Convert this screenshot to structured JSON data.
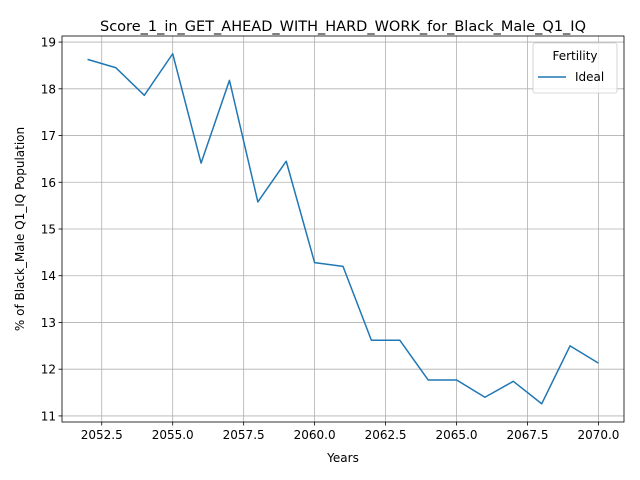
{
  "chart_data": {
    "type": "line",
    "title": "Score_1_in_GET_AHEAD_WITH_HARD_WORK_for_Black_Male_Q1_IQ",
    "xlabel": "Years",
    "ylabel": "% of Black_Male Q1_IQ Population",
    "xlim": [
      2051.1,
      2070.9
    ],
    "ylim": [
      10.87,
      19.13
    ],
    "x_ticks": [
      2052.5,
      2055.0,
      2057.5,
      2060.0,
      2062.5,
      2065.0,
      2067.5,
      2070.0
    ],
    "x_tick_labels": [
      "2052.5",
      "2055.0",
      "2057.5",
      "2060.0",
      "2062.5",
      "2065.0",
      "2067.5",
      "2070.0"
    ],
    "y_ticks": [
      11,
      12,
      13,
      14,
      15,
      16,
      17,
      18,
      19
    ],
    "y_tick_labels": [
      "11",
      "12",
      "13",
      "14",
      "15",
      "16",
      "17",
      "18",
      "19"
    ],
    "grid": true,
    "legend": {
      "title": "Fertility",
      "placement": "top-right"
    },
    "series": [
      {
        "name": "Ideal",
        "color": "#1f77b4",
        "x": [
          2052,
          2053,
          2054,
          2055,
          2056,
          2057,
          2058,
          2059,
          2060,
          2061,
          2062,
          2063,
          2064,
          2065,
          2066,
          2067,
          2068,
          2069,
          2070
        ],
        "values": [
          18.63,
          18.45,
          17.86,
          18.75,
          16.41,
          18.18,
          15.58,
          16.45,
          14.28,
          14.2,
          12.62,
          12.62,
          11.77,
          11.77,
          11.4,
          11.74,
          11.26,
          12.5,
          12.13
        ]
      }
    ]
  }
}
